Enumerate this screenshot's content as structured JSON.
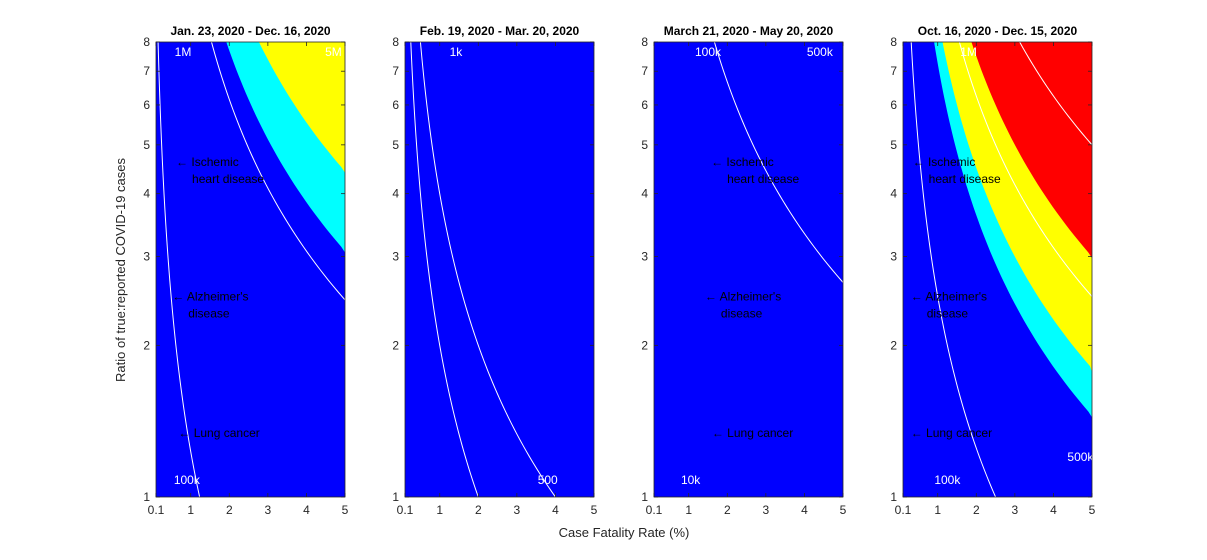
{
  "figure": {
    "ylabel": "Ratio of true:reported COVID-19 cases",
    "xlabel": "Case Fatality Rate (%)"
  },
  "colors": {
    "red": "#FF0000",
    "yellow": "#FFFF00",
    "cyan": "#00FFFF",
    "blue": "#0000FF",
    "contour": "#FFFFFF",
    "axis": "#262626"
  },
  "chart_data": [
    {
      "type": "heatmap",
      "title": "Jan. 23, 2020 - Dec. 16, 2020",
      "deaths_base": 3250000,
      "xlim": [
        0.1,
        5
      ],
      "ylim": [
        1,
        8
      ],
      "yscale": "log",
      "xticks": [
        "0.1",
        "1",
        "2",
        "3",
        "4",
        "5"
      ],
      "yticks": [
        "1",
        "2",
        "3",
        "4",
        "5",
        "6",
        "7",
        "8"
      ],
      "thresholds": [
        {
          "color": "blue",
          "max": 1250000
        },
        {
          "color": "cyan",
          "max": 1800000
        },
        {
          "color": "yellow",
          "max": 3250000
        },
        {
          "color": "red",
          "max": null
        }
      ],
      "contours": [
        {
          "label": "100k",
          "value": 100000,
          "label_x": 0.9,
          "label_y": 1.08
        },
        {
          "label": "1M",
          "value": 1000000,
          "label_x": 0.8,
          "label_y": 7.65
        },
        {
          "label": "5M",
          "value": 5000000,
          "label_x": 4.7,
          "label_y": 7.65
        }
      ],
      "annotations": [
        {
          "lines": [
            "← Ischemic",
            "heart disease"
          ],
          "x": 0.62,
          "y": 4.62
        },
        {
          "lines": [
            "← Alzheimer's",
            "disease"
          ],
          "x": 0.52,
          "y": 2.5
        },
        {
          "lines": [
            "← Lung cancer"
          ],
          "x": 0.68,
          "y": 1.34
        }
      ]
    },
    {
      "type": "heatmap",
      "title": "Feb. 19, 2020 - Mar. 20, 2020",
      "deaths_base": 10000,
      "xlim": [
        0.1,
        5
      ],
      "ylim": [
        1,
        8
      ],
      "yscale": "log",
      "xticks": [
        "0.1",
        "1",
        "2",
        "3",
        "4",
        "5"
      ],
      "yticks": [
        "1",
        "2",
        "3",
        "4",
        "5",
        "6",
        "7",
        "8"
      ],
      "thresholds": [
        {
          "color": "blue",
          "max": 700000
        },
        {
          "color": "cyan",
          "max": 1000000
        },
        {
          "color": "yellow",
          "max": 3000000
        },
        {
          "color": "red",
          "max": null
        }
      ],
      "contours": [
        {
          "label": "1k",
          "value": 1000,
          "label_x": 1.42,
          "label_y": 7.65
        },
        {
          "label": "500",
          "value": 500,
          "label_x": 3.8,
          "label_y": 1.08
        }
      ],
      "annotations": []
    },
    {
      "type": "heatmap",
      "title": "March 21, 2020 - May 20, 2020",
      "deaths_base": 30000,
      "xlim": [
        0.1,
        5
      ],
      "ylim": [
        1,
        8
      ],
      "yscale": "log",
      "xticks": [
        "0.1",
        "1",
        "2",
        "3",
        "4",
        "5"
      ],
      "yticks": [
        "1",
        "2",
        "3",
        "4",
        "5",
        "6",
        "7",
        "8"
      ],
      "thresholds": [
        {
          "color": "blue",
          "max": 66000
        },
        {
          "color": "cyan",
          "max": 97000
        },
        {
          "color": "yellow",
          "max": 200000
        },
        {
          "color": "red",
          "max": null
        }
      ],
      "contours": [
        {
          "label": "10k",
          "value": 10000,
          "label_x": 1.05,
          "label_y": 1.08
        },
        {
          "label": "100k",
          "value": 100000,
          "label_x": 1.5,
          "label_y": 7.65
        },
        {
          "label": "500k",
          "value": 500000,
          "label_x": 4.4,
          "label_y": 7.65
        }
      ],
      "annotations": [
        {
          "lines": [
            "← Ischemic",
            "heart disease"
          ],
          "x": 1.58,
          "y": 4.62
        },
        {
          "lines": [
            "← Alzheimer's",
            "disease"
          ],
          "x": 1.42,
          "y": 2.5
        },
        {
          "lines": [
            "← Lung cancer"
          ],
          "x": 1.6,
          "y": 1.34
        }
      ]
    },
    {
      "type": "heatmap",
      "title": "Oct. 16, 2020 - Dec. 15, 2020",
      "deaths_base": 1600000,
      "xlim": [
        0.1,
        5
      ],
      "ylim": [
        1,
        8
      ],
      "yscale": "log",
      "xticks": [
        "0.1",
        "1",
        "2",
        "3",
        "4",
        "5"
      ],
      "yticks": [
        "1",
        "2",
        "3",
        "4",
        "5",
        "6",
        "7",
        "8"
      ],
      "thresholds": [
        {
          "color": "blue",
          "max": 290000
        },
        {
          "color": "cyan",
          "max": 360000
        },
        {
          "color": "yellow",
          "max": 600000
        },
        {
          "color": "red",
          "max": null
        }
      ],
      "contours": [
        {
          "label": "100k",
          "value": 100000,
          "label_x": 1.25,
          "label_y": 1.08
        },
        {
          "label": "1M",
          "value": 1000000,
          "label_x": 1.8,
          "label_y": 7.65
        },
        {
          "label": "500k",
          "value": 500000,
          "label_x": 4.7,
          "label_y": 1.2
        }
      ],
      "annotations": [
        {
          "lines": [
            "← Ischemic",
            "heart disease"
          ],
          "x": 0.35,
          "y": 4.62
        },
        {
          "lines": [
            "← Alzheimer's",
            "disease"
          ],
          "x": 0.3,
          "y": 2.5
        },
        {
          "lines": [
            "← Lung cancer"
          ],
          "x": 0.3,
          "y": 1.34
        }
      ]
    }
  ]
}
